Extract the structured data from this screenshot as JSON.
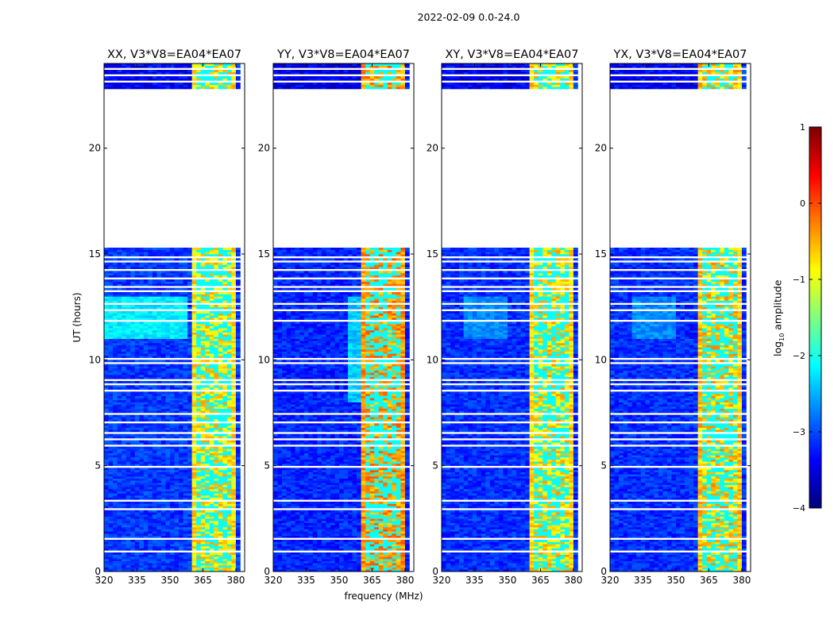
{
  "figure": {
    "suptitle": "2022-02-09 0.0-24.0"
  },
  "chart_data": {
    "type": "heatmap",
    "title": "2022-02-09 0.0-24.0",
    "xlabel": "frequency (MHz)",
    "ylabel": "UT (hours)",
    "xlim": [
      320,
      384
    ],
    "ylim": [
      0,
      24
    ],
    "xticks": [
      320,
      335,
      350,
      365,
      380
    ],
    "xtick_labels": [
      "320",
      "335",
      "350",
      "365",
      "380"
    ],
    "yticks": [
      0,
      5,
      10,
      15,
      20
    ],
    "ytick_labels": [
      "0",
      "5",
      "10",
      "15",
      "20"
    ],
    "time_coverage_hours": [
      [
        0,
        7.0
      ],
      [
        7.1,
        15.25
      ],
      [
        22.85,
        24
      ]
    ],
    "flagged_times_hours": [
      0.9,
      1.3,
      1.55,
      3.0,
      3.4,
      4.9,
      5.9,
      6.2,
      6.5,
      7.4,
      8.5,
      8.8,
      9.0,
      9.8,
      10.0,
      11.8,
      12.3,
      12.6,
      13.2,
      13.4,
      13.8,
      14.2,
      14.6,
      14.8,
      23.2,
      23.5,
      23.8
    ],
    "band_edges_MHz": [
      360,
      380
    ],
    "band_channel_lines_MHz": [
      364,
      368,
      372,
      376
    ],
    "panels": [
      {
        "title": "XX, V3*V8=EA04*EA07",
        "background_level": -3.1,
        "band_level": -0.75,
        "enhanced_region": {
          "hours": [
            11,
            13
          ],
          "freq": [
            320,
            358
          ],
          "level": -2.2
        }
      },
      {
        "title": "YY, V3*V8=EA04*EA07",
        "background_level": -3.2,
        "band_level": -0.35,
        "enhanced_region": {
          "hours": [
            8,
            13
          ],
          "freq": [
            355,
            360
          ],
          "level": -2.4
        }
      },
      {
        "title": "XY, V3*V8=EA04*EA07",
        "background_level": -3.15,
        "band_level": -0.7,
        "enhanced_region": {
          "hours": [
            11,
            13
          ],
          "freq": [
            330,
            350
          ],
          "level": -2.7
        }
      },
      {
        "title": "YX, V3*V8=EA04*EA07",
        "background_level": -3.15,
        "band_level": -0.6,
        "enhanced_region": {
          "hours": [
            11,
            13
          ],
          "freq": [
            330,
            350
          ],
          "level": -2.7
        }
      }
    ],
    "colorbar": {
      "label_prefix": "log",
      "label_sub": "10",
      "label_suffix": " amplitude",
      "range": [
        -4,
        1
      ],
      "ticks": [
        1,
        0,
        -1,
        -2,
        -3,
        -4
      ],
      "tick_labels": [
        "1",
        "0",
        "−1",
        "−2",
        "−3",
        "−4"
      ],
      "colormap": "jet"
    }
  }
}
